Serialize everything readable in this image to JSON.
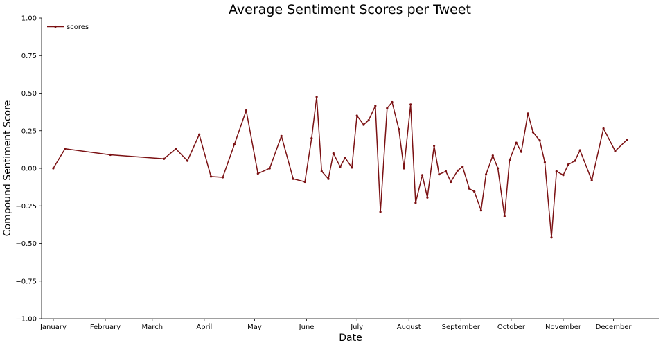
{
  "chart_data": {
    "type": "line",
    "title": "Average Sentiment Scores per Tweet",
    "xlabel": "Date",
    "ylabel": "Compound Sentiment Score",
    "ylim": [
      -1.0,
      1.0
    ],
    "yticks": [
      -1.0,
      -0.75,
      -0.5,
      -0.25,
      0.0,
      0.25,
      0.5,
      0.75,
      1.0
    ],
    "ytick_labels": [
      "−1.00",
      "−0.75",
      "−0.50",
      "−0.25",
      "0.00",
      "0.25",
      "0.50",
      "0.75",
      "1.00"
    ],
    "xlim": [
      "2020-12-25",
      "2021-12-28"
    ],
    "xticks": [
      {
        "date": "2021-01-01",
        "label": "January"
      },
      {
        "date": "2021-02-01",
        "label": "February"
      },
      {
        "date": "2021-03-01",
        "label": "March"
      },
      {
        "date": "2021-04-01",
        "label": "April"
      },
      {
        "date": "2021-05-01",
        "label": "May"
      },
      {
        "date": "2021-06-01",
        "label": "June"
      },
      {
        "date": "2021-07-01",
        "label": "July"
      },
      {
        "date": "2021-08-01",
        "label": "August"
      },
      {
        "date": "2021-09-01",
        "label": "September"
      },
      {
        "date": "2021-10-01",
        "label": "October"
      },
      {
        "date": "2021-11-01",
        "label": "November"
      },
      {
        "date": "2021-12-01",
        "label": "December"
      }
    ],
    "grid": false,
    "legend": "top-left",
    "series": [
      {
        "name": "scores",
        "color": "#7b1113",
        "points": [
          {
            "x": "2021-01-01",
            "y": 0.0
          },
          {
            "x": "2021-01-08",
            "y": 0.13
          },
          {
            "x": "2021-02-04",
            "y": 0.09
          },
          {
            "x": "2021-03-08",
            "y": 0.063
          },
          {
            "x": "2021-03-15",
            "y": 0.13
          },
          {
            "x": "2021-03-22",
            "y": 0.05
          },
          {
            "x": "2021-03-29",
            "y": 0.225
          },
          {
            "x": "2021-04-05",
            "y": -0.055
          },
          {
            "x": "2021-04-12",
            "y": -0.06
          },
          {
            "x": "2021-04-19",
            "y": 0.16
          },
          {
            "x": "2021-04-26",
            "y": 0.385
          },
          {
            "x": "2021-05-03",
            "y": -0.035
          },
          {
            "x": "2021-05-10",
            "y": 0.0
          },
          {
            "x": "2021-05-17",
            "y": 0.215
          },
          {
            "x": "2021-05-24",
            "y": -0.07
          },
          {
            "x": "2021-05-31",
            "y": -0.09
          },
          {
            "x": "2021-06-04",
            "y": 0.2
          },
          {
            "x": "2021-06-07",
            "y": 0.475
          },
          {
            "x": "2021-06-10",
            "y": -0.02
          },
          {
            "x": "2021-06-14",
            "y": -0.07
          },
          {
            "x": "2021-06-17",
            "y": 0.1
          },
          {
            "x": "2021-06-21",
            "y": 0.01
          },
          {
            "x": "2021-06-24",
            "y": 0.07
          },
          {
            "x": "2021-06-28",
            "y": 0.005
          },
          {
            "x": "2021-07-01",
            "y": 0.35
          },
          {
            "x": "2021-07-05",
            "y": 0.29
          },
          {
            "x": "2021-07-08",
            "y": 0.32
          },
          {
            "x": "2021-07-12",
            "y": 0.415
          },
          {
            "x": "2021-07-15",
            "y": -0.29
          },
          {
            "x": "2021-07-19",
            "y": 0.4
          },
          {
            "x": "2021-07-22",
            "y": 0.44
          },
          {
            "x": "2021-07-26",
            "y": 0.26
          },
          {
            "x": "2021-07-29",
            "y": 0.0
          },
          {
            "x": "2021-08-02",
            "y": 0.425
          },
          {
            "x": "2021-08-05",
            "y": -0.23
          },
          {
            "x": "2021-08-09",
            "y": -0.045
          },
          {
            "x": "2021-08-12",
            "y": -0.195
          },
          {
            "x": "2021-08-16",
            "y": 0.15
          },
          {
            "x": "2021-08-19",
            "y": -0.04
          },
          {
            "x": "2021-08-23",
            "y": -0.02
          },
          {
            "x": "2021-08-26",
            "y": -0.09
          },
          {
            "x": "2021-08-30",
            "y": -0.015
          },
          {
            "x": "2021-09-02",
            "y": 0.01
          },
          {
            "x": "2021-09-06",
            "y": -0.135
          },
          {
            "x": "2021-09-09",
            "y": -0.155
          },
          {
            "x": "2021-09-13",
            "y": -0.28
          },
          {
            "x": "2021-09-16",
            "y": -0.04
          },
          {
            "x": "2021-09-20",
            "y": 0.085
          },
          {
            "x": "2021-09-23",
            "y": 0.0
          },
          {
            "x": "2021-09-27",
            "y": -0.32
          },
          {
            "x": "2021-09-30",
            "y": 0.055
          },
          {
            "x": "2021-10-04",
            "y": 0.17
          },
          {
            "x": "2021-10-07",
            "y": 0.11
          },
          {
            "x": "2021-10-11",
            "y": 0.365
          },
          {
            "x": "2021-10-14",
            "y": 0.24
          },
          {
            "x": "2021-10-18",
            "y": 0.185
          },
          {
            "x": "2021-10-21",
            "y": 0.04
          },
          {
            "x": "2021-10-25",
            "y": -0.46
          },
          {
            "x": "2021-10-28",
            "y": -0.02
          },
          {
            "x": "2021-11-01",
            "y": -0.045
          },
          {
            "x": "2021-11-04",
            "y": 0.025
          },
          {
            "x": "2021-11-08",
            "y": 0.05
          },
          {
            "x": "2021-11-11",
            "y": 0.12
          },
          {
            "x": "2021-11-18",
            "y": -0.08
          },
          {
            "x": "2021-11-25",
            "y": 0.265
          },
          {
            "x": "2021-12-02",
            "y": 0.115
          },
          {
            "x": "2021-12-09",
            "y": 0.19
          }
        ]
      }
    ]
  }
}
